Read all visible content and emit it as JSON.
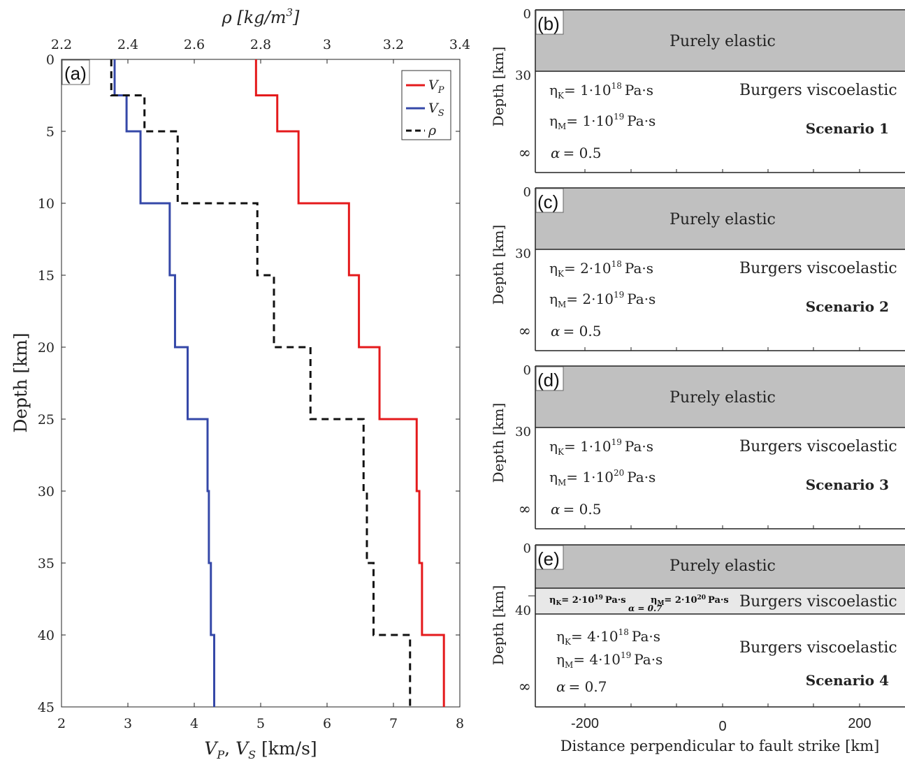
{
  "chart_data": [
    {
      "type": "line",
      "panel_label": "(a)",
      "xlabel": "V_P, V_S [km/s]",
      "xlabel_parts": [
        "V",
        "P",
        ", ",
        "V",
        "S",
        " [km/s]"
      ],
      "ylabel": "Depth [km]",
      "top_xlabel": "ρ [kg/m³]",
      "top_xlabel_parts": [
        "ρ [",
        "kg/m",
        "3",
        "]"
      ],
      "xlim": [
        2,
        8
      ],
      "ylim": [
        0,
        45
      ],
      "top_xlim": [
        2.2,
        3.4
      ],
      "x_ticks": [
        "2",
        "3",
        "4",
        "5",
        "6",
        "7",
        "8"
      ],
      "top_ticks": [
        "2.2",
        "2.4",
        "2.6",
        "2.8",
        "3",
        "3.2",
        "3.4"
      ],
      "y_ticks": [
        "0",
        "5",
        "10",
        "15",
        "20",
        "25",
        "30",
        "35",
        "40",
        "45"
      ],
      "legend_position": "top-right",
      "legend": [
        {
          "key": "vp",
          "symbol": "V",
          "sub": "P"
        },
        {
          "key": "vs",
          "symbol": "V",
          "sub": "S"
        },
        {
          "key": "rho",
          "symbol": "ρ",
          "sub": ""
        }
      ],
      "series": [
        {
          "name": "V_P",
          "axis": "bottom",
          "color": "#e41a1c",
          "dash": "solid",
          "layers": [
            {
              "top": 0,
              "bottom": 2.5,
              "value": 4.93
            },
            {
              "top": 2.5,
              "bottom": 5,
              "value": 5.25
            },
            {
              "top": 5,
              "bottom": 10,
              "value": 5.57
            },
            {
              "top": 10,
              "bottom": 15,
              "value": 6.33
            },
            {
              "top": 15,
              "bottom": 20,
              "value": 6.48
            },
            {
              "top": 20,
              "bottom": 25,
              "value": 6.79
            },
            {
              "top": 25,
              "bottom": 30,
              "value": 7.35
            },
            {
              "top": 30,
              "bottom": 35,
              "value": 7.39
            },
            {
              "top": 35,
              "bottom": 40,
              "value": 7.43
            },
            {
              "top": 40,
              "bottom": 45,
              "value": 7.76
            }
          ]
        },
        {
          "name": "V_S",
          "axis": "bottom",
          "color": "#3548a8",
          "dash": "solid",
          "layers": [
            {
              "top": 0,
              "bottom": 2.5,
              "value": 2.8
            },
            {
              "top": 2.5,
              "bottom": 5,
              "value": 2.98
            },
            {
              "top": 5,
              "bottom": 10,
              "value": 3.19
            },
            {
              "top": 10,
              "bottom": 15,
              "value": 3.63
            },
            {
              "top": 15,
              "bottom": 20,
              "value": 3.71
            },
            {
              "top": 20,
              "bottom": 25,
              "value": 3.9
            },
            {
              "top": 25,
              "bottom": 30,
              "value": 4.2
            },
            {
              "top": 30,
              "bottom": 35,
              "value": 4.22
            },
            {
              "top": 35,
              "bottom": 40,
              "value": 4.25
            },
            {
              "top": 40,
              "bottom": 45,
              "value": 4.3
            }
          ]
        },
        {
          "name": "ρ",
          "axis": "top",
          "color": "#111111",
          "dash": "dashed",
          "layers": [
            {
              "top": 0,
              "bottom": 2.5,
              "value": 2.35
            },
            {
              "top": 2.5,
              "bottom": 5,
              "value": 2.45
            },
            {
              "top": 5,
              "bottom": 10,
              "value": 2.55
            },
            {
              "top": 10,
              "bottom": 15,
              "value": 2.79
            },
            {
              "top": 15,
              "bottom": 20,
              "value": 2.84
            },
            {
              "top": 20,
              "bottom": 25,
              "value": 2.95
            },
            {
              "top": 25,
              "bottom": 30,
              "value": 3.11
            },
            {
              "top": 30,
              "bottom": 35,
              "value": 3.12
            },
            {
              "top": 35,
              "bottom": 40,
              "value": 3.14
            },
            {
              "top": 40,
              "bottom": 45,
              "value": 3.25
            }
          ]
        }
      ]
    },
    {
      "type": "diagram",
      "panel_label": "(b)",
      "y_ticks": [
        "0",
        "30",
        "∞"
      ],
      "elastic_label": "Purely elastic",
      "visco_label": "Burgers viscoelastic",
      "eta_k": "= 1·10",
      "eta_k_exp": "18",
      "eta_m": "= 1·10",
      "eta_m_exp": "19",
      "unit": "Pa·s",
      "alpha": "= 0.5",
      "scenario": "Scenario 1"
    },
    {
      "type": "diagram",
      "panel_label": "(c)",
      "y_ticks": [
        "0",
        "30",
        "∞"
      ],
      "elastic_label": "Purely elastic",
      "visco_label": "Burgers viscoelastic",
      "eta_k": "= 2·10",
      "eta_k_exp": "18",
      "eta_m": "= 2·10",
      "eta_m_exp": "19",
      "unit": "Pa·s",
      "alpha": "= 0.5",
      "scenario": "Scenario 2"
    },
    {
      "type": "diagram",
      "panel_label": "(d)",
      "y_ticks": [
        "0",
        "30",
        "∞"
      ],
      "elastic_label": "Purely elastic",
      "visco_label": "Burgers viscoelastic",
      "eta_k": "= 1·10",
      "eta_k_exp": "19",
      "eta_m": "= 1·10",
      "eta_m_exp": "20",
      "unit": "Pa·s",
      "alpha": "= 0.5",
      "scenario": "Scenario 3"
    },
    {
      "type": "diagram",
      "panel_label": "(e)",
      "y_ticks": [
        "0",
        "40",
        "∞"
      ],
      "elastic_label": "Purely elastic",
      "visco_label": "Burgers viscoelastic",
      "band_label": "Burgers viscoelastic",
      "band_eta_k": "= 2·10",
      "band_eta_k_exp": "19",
      "band_eta_m": "= 2·10",
      "band_eta_m_exp": "20",
      "band_unit": "Pa·s",
      "band_alpha": "α = 0.7",
      "eta_k": "= 4·10",
      "eta_k_exp": "18",
      "eta_m": "= 4·10",
      "eta_m_exp": "19",
      "unit": "Pa·s",
      "alpha": "= 0.7",
      "scenario": "Scenario 4",
      "x_ticks": [
        "-200",
        "0",
        "200"
      ],
      "xlabel": "Distance perpendicular to fault strike [km]"
    }
  ],
  "shared": {
    "ylabel_right": "Depth [km]",
    "eta_symbol": "η",
    "k_sub": "K",
    "m_sub": "M",
    "alpha_symbol": "α"
  }
}
